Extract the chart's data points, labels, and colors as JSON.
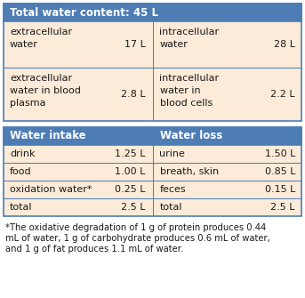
{
  "header1_text": "Total water content: 45 L",
  "header1_bg": "#4E7DB5",
  "header1_fg": "#FFFFFF",
  "table1_bg": "#FCEBD8",
  "table1_border": "#4E7DB5",
  "table1_rows": [
    [
      "extracellular\nwater",
      "17 L",
      "intracellular\nwater",
      "28 L"
    ],
    [
      "extracellular\nwater in blood\nplasma",
      "2.8 L",
      "intracellular\nwater in\nblood cells",
      "2.2 L"
    ]
  ],
  "header2_left": "Water intake",
  "header2_right": "Water loss",
  "header2_bg": "#4E7DB5",
  "header2_fg": "#FFFFFF",
  "table2_bg": "#FCEBD8",
  "table2_border": "#4E7DB5",
  "table2_rows": [
    [
      "drink",
      "1.25 L",
      "urine",
      "1.50 L"
    ],
    [
      "food",
      "1.00 L",
      "breath, skin",
      "0.85 L"
    ],
    [
      "oxidation water*",
      "0.25 L",
      "feces",
      "0.15 L"
    ],
    [
      "total",
      "2.5 L",
      "total",
      "2.5 L"
    ]
  ],
  "footnote_lines": [
    "*The oxidative degradation of 1 g of protein produces 0.44",
    "mL of water, 1 g of carbohydrate produces 0.6 mL of water,",
    "and 1 g of fat produces 1.1 mL of water."
  ],
  "footnote_fontsize": 7.2,
  "body_fontsize": 8.0,
  "header_fontsize": 8.5,
  "text_color": "#1a1a1a",
  "fig_bg": "#FFFFFF"
}
